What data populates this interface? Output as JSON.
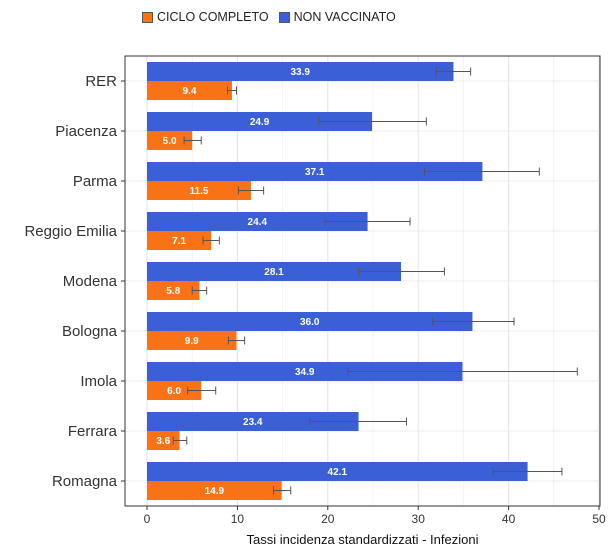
{
  "colors": {
    "ciclo": "#F97316",
    "non_vaccinato": "#3B5FD6",
    "errorbar": "#555555",
    "grid": "#e6e6e6"
  },
  "chart_data": {
    "type": "bar",
    "orientation": "horizontal",
    "xlabel": "Tassi incidenza standardizzati - Infezioni",
    "ylabel": "",
    "xlim": [
      0,
      50
    ],
    "xticks": [
      0,
      10,
      20,
      30,
      40,
      50
    ],
    "grid": true,
    "legend_position": "top",
    "categories": [
      "RER",
      "Piacenza",
      "Parma",
      "Reggio Emilia",
      "Modena",
      "Bologna",
      "Imola",
      "Ferrara",
      "Romagna"
    ],
    "series": [
      {
        "name": "NON VACCINATO",
        "values": [
          33.9,
          24.9,
          37.1,
          24.4,
          28.1,
          36.0,
          34.9,
          23.4,
          42.1
        ],
        "labels": [
          "33.9",
          "24.9",
          "37.1",
          "24.4",
          "28.1",
          "36.0",
          "34.9",
          "23.4",
          "42.1"
        ],
        "ci_low": [
          32.0,
          19.0,
          30.7,
          19.7,
          23.4,
          31.6,
          22.2,
          18.0,
          38.3
        ],
        "ci_high": [
          35.8,
          30.9,
          43.4,
          29.1,
          32.9,
          40.6,
          47.6,
          28.7,
          45.9
        ]
      },
      {
        "name": "CICLO COMPLETO",
        "values": [
          9.4,
          5.0,
          11.5,
          7.1,
          5.8,
          9.9,
          6.0,
          3.6,
          14.9
        ],
        "labels": [
          "9.4",
          "5.0",
          "11.5",
          "7.1",
          "5.8",
          "9.9",
          "6.0",
          "3.6",
          "14.9"
        ],
        "ci_low": [
          8.9,
          4.1,
          10.1,
          6.2,
          5.0,
          9.0,
          4.5,
          2.9,
          14.0
        ],
        "ci_high": [
          9.9,
          6.0,
          12.9,
          8.0,
          6.6,
          10.8,
          7.6,
          4.4,
          15.9
        ]
      }
    ]
  }
}
